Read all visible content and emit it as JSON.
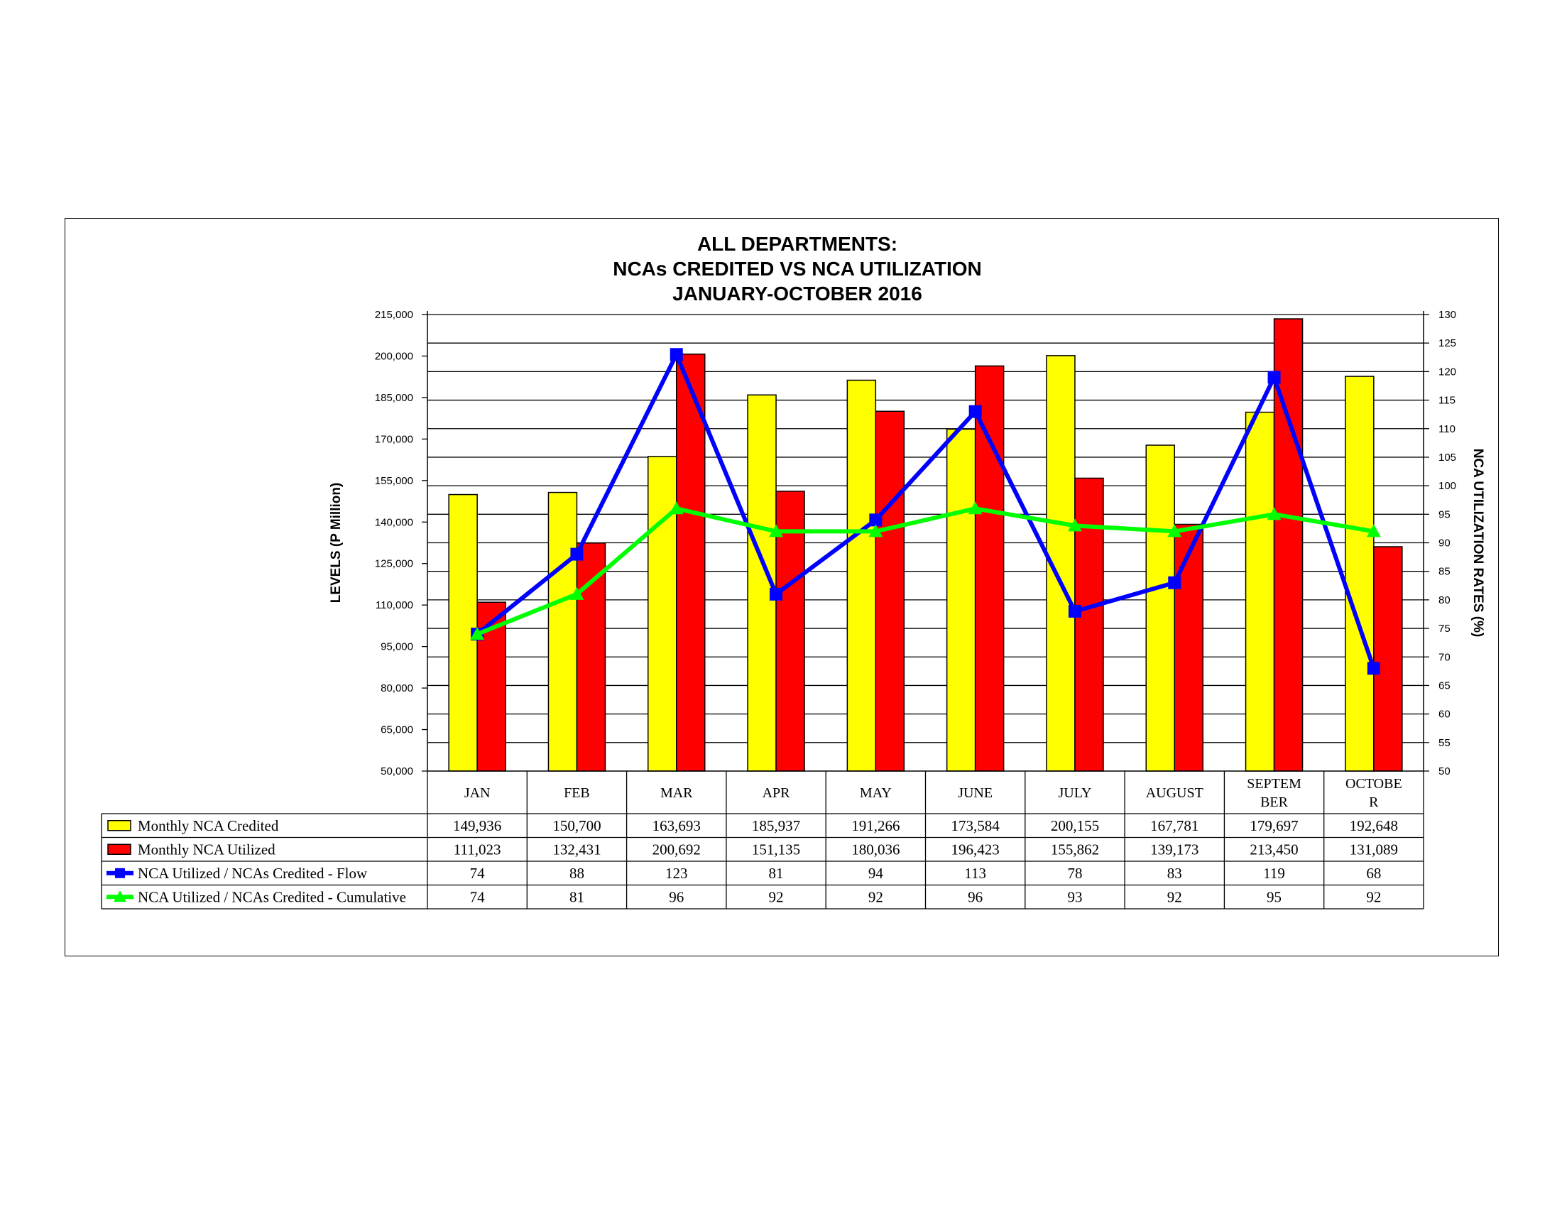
{
  "chart_data": {
    "type": "bar",
    "title": [
      "ALL DEPARTMENTS:",
      "NCAs CREDITED VS NCA UTILIZATION",
      "JANUARY-OCTOBER 2016"
    ],
    "categories": [
      [
        "JAN"
      ],
      [
        "FEB"
      ],
      [
        "MAR"
      ],
      [
        "APR"
      ],
      [
        "MAY"
      ],
      [
        "JUNE"
      ],
      [
        "JULY"
      ],
      [
        "AUGUST"
      ],
      [
        "SEPTEM",
        "BER"
      ],
      [
        "OCTOBE",
        "R"
      ]
    ],
    "ylabel": "LEVELS (P Million)",
    "y2label": "NCA UTILIZATION RATES (%)",
    "ylim": [
      50000,
      215000
    ],
    "y_ticks": [
      "50,000",
      "65,000",
      "80,000",
      "95,000",
      "110,000",
      "125,000",
      "140,000",
      "155,000",
      "170,000",
      "185,000",
      "200,000",
      "215,000"
    ],
    "y2lim": [
      50,
      130
    ],
    "y2_ticks": [
      "50",
      "55",
      "60",
      "65",
      "70",
      "75",
      "80",
      "85",
      "90",
      "95",
      "100",
      "105",
      "110",
      "115",
      "120",
      "125",
      "130"
    ],
    "gridlines": true,
    "series": [
      {
        "name": "Monthly NCA Credited",
        "kind": "bar",
        "axis": "left",
        "color": "#ffff00",
        "values": [
          149936,
          150700,
          163693,
          185937,
          191266,
          173584,
          200155,
          167781,
          179697,
          192648
        ],
        "labels": [
          "149,936",
          "150,700",
          "163,693",
          "185,937",
          "191,266",
          "173,584",
          "200,155",
          "167,781",
          "179,697",
          "192,648"
        ]
      },
      {
        "name": "Monthly NCA Utilized",
        "kind": "bar",
        "axis": "left",
        "color": "#ff0000",
        "values": [
          111023,
          132431,
          200692,
          151135,
          180036,
          196423,
          155862,
          139173,
          213450,
          131089
        ],
        "labels": [
          "111,023",
          "132,431",
          "200,692",
          "151,135",
          "180,036",
          "196,423",
          "155,862",
          "139,173",
          "213,450",
          "131,089"
        ]
      },
      {
        "name": "NCA Utilized / NCAs Credited - Flow",
        "kind": "line",
        "marker": "square",
        "axis": "right",
        "color": "#0000ff",
        "values": [
          74,
          88,
          123,
          81,
          94,
          113,
          78,
          83,
          119,
          68
        ],
        "labels": [
          "74",
          "88",
          "123",
          "81",
          "94",
          "113",
          "78",
          "83",
          "119",
          "68"
        ]
      },
      {
        "name": "NCA Utilized / NCAs Credited - Cumulative",
        "kind": "line",
        "marker": "triangle",
        "axis": "right",
        "color": "#00ff00",
        "values": [
          74,
          81,
          96,
          92,
          92,
          96,
          93,
          92,
          95,
          92
        ],
        "labels": [
          "74",
          "81",
          "96",
          "92",
          "92",
          "96",
          "93",
          "92",
          "95",
          "92"
        ]
      }
    ]
  }
}
